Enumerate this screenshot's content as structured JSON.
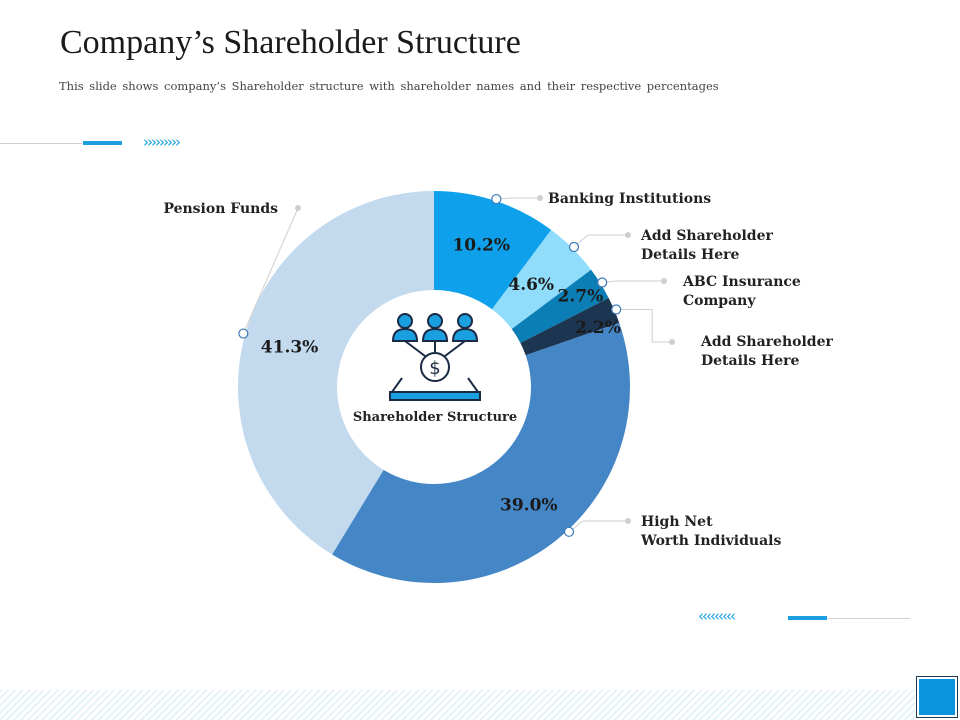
{
  "header": {
    "title": "Company’s Shareholder Structure",
    "subtitle": "This slide shows company’s Shareholder structure with shareholder names and their respective percentages"
  },
  "decor": {
    "chevrons_right": "›››››››››",
    "chevrons_left": "‹‹‹‹‹‹‹‹‹"
  },
  "colors": {
    "accent": "#1aa0e0"
  },
  "chart_data": {
    "type": "pie",
    "subtype": "donut",
    "center_label": "Shareholder Structure",
    "center_icon": "shareholders-dollar-icon",
    "slices": [
      {
        "name": "Banking Institutions",
        "value": 10.2,
        "label": "10.2%",
        "color": "#0ea0ea",
        "callout": [
          "Banking Institutions"
        ]
      },
      {
        "name": "Add Shareholder Details Here",
        "value": 4.6,
        "label": "4.6%",
        "color": "#8fdcfb",
        "callout": [
          "Add Shareholder",
          "Details Here"
        ]
      },
      {
        "name": "ABC Insurance Company",
        "value": 2.7,
        "label": "2.7%",
        "color": "#0a7eb5",
        "callout": [
          "ABC Insurance",
          "Company"
        ]
      },
      {
        "name": "Add Shareholder Details Here",
        "value": 2.2,
        "label": "2.2%",
        "color": "#1c3550",
        "callout": [
          "Add Shareholder",
          "Details Here"
        ]
      },
      {
        "name": "High Net Worth Individuals",
        "value": 39.0,
        "label": "39.0%",
        "color": "#4586c6",
        "callout": [
          "High Net",
          "Worth Individuals"
        ]
      },
      {
        "name": "Pension Funds",
        "value": 41.3,
        "label": "41.3%",
        "color": "#c2d9ee",
        "callout": [
          "Pension Funds"
        ]
      }
    ]
  }
}
